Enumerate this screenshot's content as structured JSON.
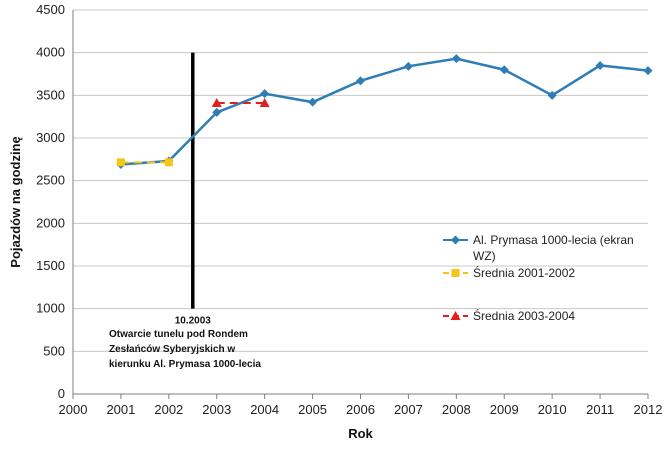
{
  "chart_data": {
    "type": "line",
    "xlabel": "Rok",
    "ylabel": "Pojazdów na godzinę",
    "xlim": [
      2000,
      2012
    ],
    "ylim": [
      0,
      4500
    ],
    "x_ticks": [
      2000,
      2001,
      2002,
      2003,
      2004,
      2005,
      2006,
      2007,
      2008,
      2009,
      2010,
      2011,
      2012
    ],
    "y_ticks": [
      0,
      500,
      1000,
      1500,
      2000,
      2500,
      3000,
      3500,
      4000,
      4500
    ],
    "grid": "horizontal",
    "legend_position": "right",
    "series": [
      {
        "name": "Al. Prymasa 1000-lecia (ekran WZ)",
        "color": "#2E7DB5",
        "marker": "diamond",
        "line": "solid",
        "x": [
          2001,
          2002,
          2003,
          2004,
          2005,
          2006,
          2007,
          2008,
          2009,
          2010,
          2011,
          2012
        ],
        "values": [
          2690,
          2730,
          3300,
          3520,
          3420,
          3670,
          3840,
          3930,
          3800,
          3500,
          3850,
          3790
        ]
      },
      {
        "name": "Średnia 2001-2002",
        "color": "#F5C518",
        "marker": "square",
        "line": "dashed",
        "x": [
          2001,
          2002
        ],
        "values": [
          2715,
          2715
        ]
      },
      {
        "name": "Średnia 2003-2004",
        "color": "#E02020",
        "marker": "triangle",
        "line": "dashed",
        "x": [
          2003,
          2004
        ],
        "values": [
          3410,
          3410
        ]
      }
    ],
    "event_line": {
      "x": 2002.5,
      "ymax": 4000,
      "color": "#000000",
      "label": "10.2003",
      "note": [
        "Otwarcie tunelu pod Rondem",
        "Zesłańców Syberyjskich w",
        "kierunku Al. Prymasa 1000-lecia"
      ]
    }
  }
}
